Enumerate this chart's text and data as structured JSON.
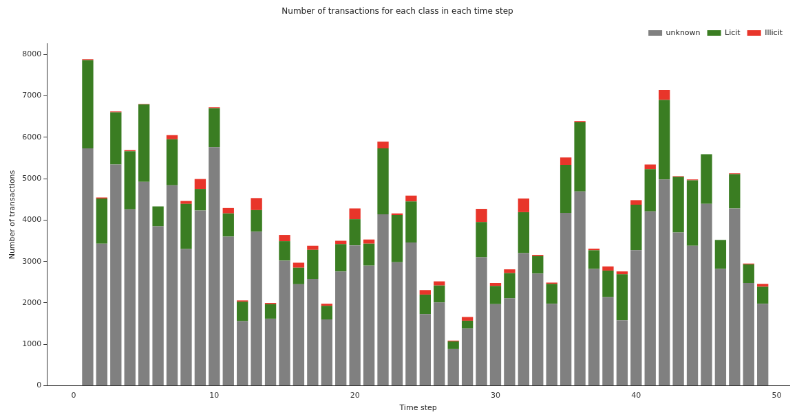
{
  "chart_data": {
    "type": "bar",
    "stacked": true,
    "title": "Number of transactions for each class in each time step",
    "xlabel": "Time step",
    "ylabel": "Number of transactions",
    "x": [
      1,
      2,
      3,
      4,
      5,
      6,
      7,
      8,
      9,
      10,
      11,
      12,
      13,
      14,
      15,
      16,
      17,
      18,
      19,
      20,
      21,
      22,
      23,
      24,
      25,
      26,
      27,
      28,
      29,
      30,
      31,
      32,
      33,
      34,
      35,
      36,
      37,
      38,
      39,
      40,
      41,
      42,
      43,
      44,
      45,
      46,
      47,
      48,
      49
    ],
    "series": [
      {
        "name": "unknown",
        "color": "#808080",
        "values": [
          5730,
          3430,
          5340,
          4260,
          4920,
          3850,
          4840,
          3300,
          4230,
          5760,
          3600,
          1560,
          3720,
          1620,
          3020,
          2450,
          2580,
          1600,
          2760,
          3390,
          2900,
          4140,
          2980,
          3460,
          1730,
          2010,
          890,
          1380,
          3100,
          1970,
          2110,
          3200,
          2710,
          1980,
          4170,
          4690,
          2820,
          2140,
          1580,
          3270,
          4210,
          4980,
          3700,
          3380,
          4390,
          2820,
          4280,
          2480,
          1980
        ]
      },
      {
        "name": "Licit",
        "color": "#3a7d22",
        "values": [
          2130,
          1090,
          1260,
          1400,
          1870,
          480,
          1110,
          1090,
          520,
          940,
          560,
          470,
          520,
          350,
          470,
          400,
          700,
          330,
          660,
          630,
          530,
          1590,
          1140,
          990,
          470,
          410,
          180,
          190,
          850,
          440,
          610,
          990,
          420,
          480,
          1160,
          1670,
          450,
          640,
          1110,
          1100,
          1020,
          1920,
          1340,
          1580,
          1200,
          700,
          830,
          450,
          410
        ]
      },
      {
        "name": "Illicit",
        "color": "#e8352a",
        "values": [
          20,
          25,
          20,
          30,
          10,
          null,
          100,
          70,
          240,
          20,
          130,
          30,
          290,
          30,
          150,
          120,
          100,
          50,
          80,
          260,
          100,
          160,
          40,
          140,
          110,
          100,
          20,
          90,
          320,
          70,
          90,
          330,
          30,
          30,
          180,
          30,
          40,
          100,
          70,
          110,
          110,
          240,
          20,
          20,
          0,
          0,
          20,
          20,
          70
        ]
      }
    ],
    "xlim": [
      -1.9,
      50.9
    ],
    "xticks": [
      0,
      10,
      20,
      30,
      40,
      50
    ],
    "ylim": [
      0,
      8260
    ],
    "yticks": [
      0,
      1000,
      2000,
      3000,
      4000,
      5000,
      6000,
      7000,
      8000
    ],
    "grid": false,
    "legend": "top right"
  }
}
